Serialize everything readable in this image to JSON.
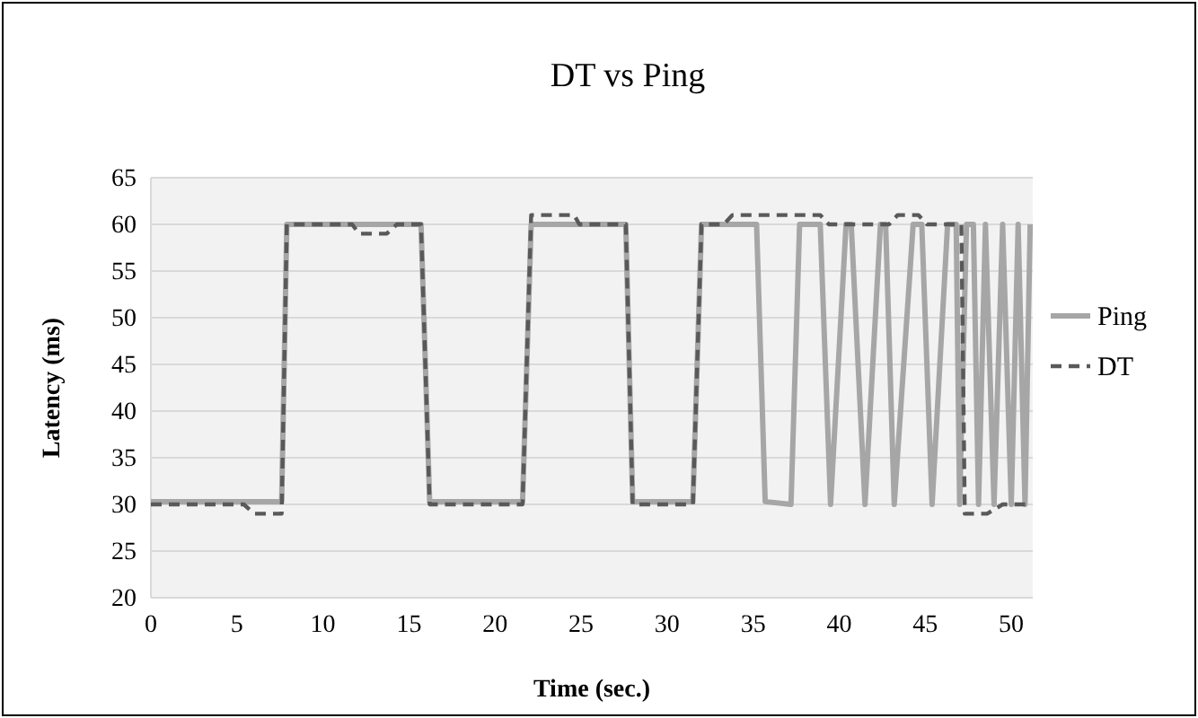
{
  "chart_data": {
    "type": "line",
    "title": "DT vs Ping",
    "xlabel": "Time (sec.)",
    "ylabel": "Latency (ms)",
    "xlim": [
      0,
      51.25
    ],
    "xticks": [
      0,
      5,
      10,
      15,
      20,
      25,
      30,
      35,
      40,
      45,
      50
    ],
    "ylim": [
      20,
      65
    ],
    "yticks": [
      20,
      25,
      30,
      35,
      40,
      45,
      50,
      55,
      60,
      65
    ],
    "grid": "y",
    "legend": "right",
    "marker": "none",
    "series": [
      {
        "name": "Ping",
        "color": "#a6a6a6",
        "line_style": "solid",
        "x": [
          0,
          7.6,
          7.9,
          15.7,
          16.2,
          21.6,
          22.1,
          27.6,
          28.0,
          31.5,
          32.0,
          35.2,
          35.7,
          37.2,
          37.7,
          38.9,
          39.5,
          40.4,
          40.7,
          41.5,
          42.4,
          42.7,
          43.2,
          44.3,
          44.8,
          45.4,
          46.3,
          46.8,
          47.0,
          47.4,
          47.8,
          48.1,
          48.5,
          49.0,
          49.5,
          50.0,
          50.4,
          50.8,
          51.1
        ],
        "values": [
          30.3,
          30.3,
          60,
          60,
          30.3,
          30.3,
          60,
          60,
          30.3,
          30.3,
          60,
          60,
          30.3,
          30,
          60,
          60,
          30,
          60,
          60,
          30,
          60,
          60,
          30,
          60,
          60,
          30,
          60,
          60,
          30,
          60,
          60,
          30,
          60,
          30,
          60,
          30,
          60,
          30,
          60
        ]
      },
      {
        "name": "DT",
        "color": "#595959",
        "line_style": "dashed",
        "x": [
          0,
          5.4,
          6.0,
          7.6,
          7.9,
          11.7,
          12.1,
          13.7,
          14.3,
          15.7,
          16.2,
          21.6,
          22.1,
          24.6,
          24.9,
          27.6,
          28.0,
          31.5,
          32.0,
          33.3,
          33.8,
          38.9,
          39.4,
          42.9,
          43.4,
          44.6,
          45.1,
          47.1,
          47.3,
          48.6,
          49.5,
          51.1
        ],
        "values": [
          30,
          30,
          29,
          29,
          60,
          60,
          59,
          59,
          60,
          60,
          30,
          30,
          61,
          61,
          60,
          60,
          30,
          30,
          60,
          60,
          61,
          61,
          60,
          60,
          61,
          61,
          60,
          60,
          29,
          29,
          30,
          30
        ]
      }
    ]
  }
}
